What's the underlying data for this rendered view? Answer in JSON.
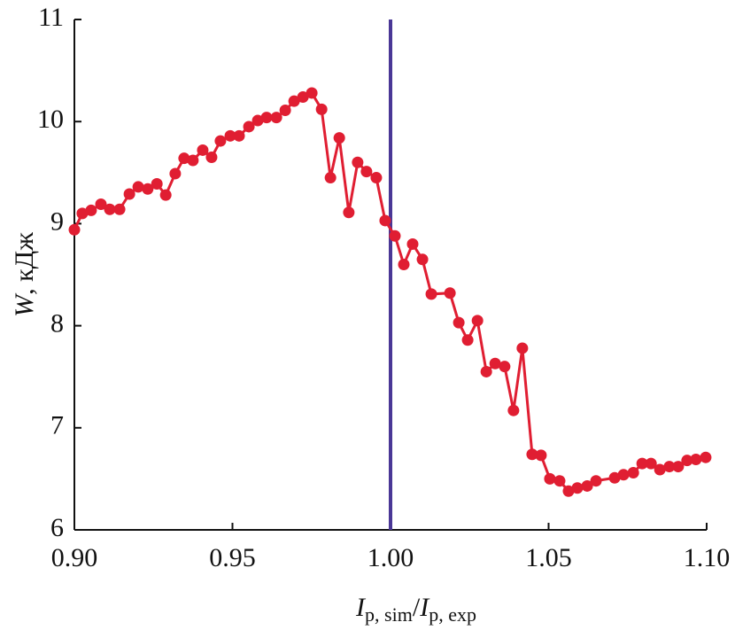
{
  "chart_data": {
    "type": "line",
    "xlabel": [
      "I",
      "p, sim",
      "/",
      "I",
      "p, exp"
    ],
    "ylabel": [
      "W",
      ", кДж"
    ],
    "x": [
      0.9,
      0.9025,
      0.9053,
      0.9084,
      0.9112,
      0.9143,
      0.9174,
      0.9202,
      0.9232,
      0.9261,
      0.9289,
      0.9319,
      0.9347,
      0.9375,
      0.9406,
      0.9434,
      0.9462,
      0.9493,
      0.9521,
      0.9552,
      0.958,
      0.9608,
      0.9639,
      0.9667,
      0.9695,
      0.9723,
      0.9751,
      0.9782,
      0.981,
      0.9838,
      0.9868,
      0.9896,
      0.9924,
      0.9955,
      0.9983,
      1.0014,
      1.0042,
      1.007,
      1.0101,
      1.0129,
      1.0188,
      1.0216,
      1.0244,
      1.0275,
      1.0303,
      1.0331,
      1.0361,
      1.0389,
      1.0417,
      1.0448,
      1.0476,
      1.0504,
      1.0535,
      1.0563,
      1.0591,
      1.0622,
      1.065,
      1.0709,
      1.0737,
      1.0768,
      1.0796,
      1.0824,
      1.0852,
      1.0882,
      1.091,
      1.0938,
      1.0966,
      1.0997
    ],
    "series": [
      {
        "color": "#e01e32",
        "values": [
          8.94,
          9.1,
          9.13,
          9.19,
          9.14,
          9.14,
          9.29,
          9.36,
          9.34,
          9.39,
          9.28,
          9.49,
          9.64,
          9.62,
          9.72,
          9.65,
          9.81,
          9.86,
          9.86,
          9.95,
          10.01,
          10.04,
          10.04,
          10.11,
          10.2,
          10.24,
          10.28,
          10.12,
          9.45,
          9.84,
          9.11,
          9.6,
          9.51,
          9.45,
          9.03,
          8.88,
          8.6,
          8.8,
          8.65,
          8.31,
          8.32,
          8.03,
          7.86,
          8.05,
          7.55,
          7.63,
          7.6,
          7.17,
          7.78,
          6.74,
          6.73,
          6.5,
          6.48,
          6.38,
          6.41,
          6.43,
          6.48,
          6.51,
          6.54,
          6.56,
          6.65,
          6.65,
          6.59,
          6.62,
          6.62,
          6.68,
          6.69,
          6.71
        ]
      }
    ],
    "vline": {
      "x": 1.0,
      "color": "#4a3796"
    },
    "xlim": [
      0.9,
      1.1
    ],
    "xticks": [
      {
        "value": 0.9,
        "label": "0.90"
      },
      {
        "value": 0.95,
        "label": "0.95"
      },
      {
        "value": 1.0,
        "label": "1.00"
      },
      {
        "value": 1.05,
        "label": "1.05"
      },
      {
        "value": 1.1,
        "label": "1.10"
      }
    ],
    "ylim": [
      6,
      11
    ],
    "yticks": [
      6,
      7,
      8,
      9,
      10,
      11
    ]
  }
}
